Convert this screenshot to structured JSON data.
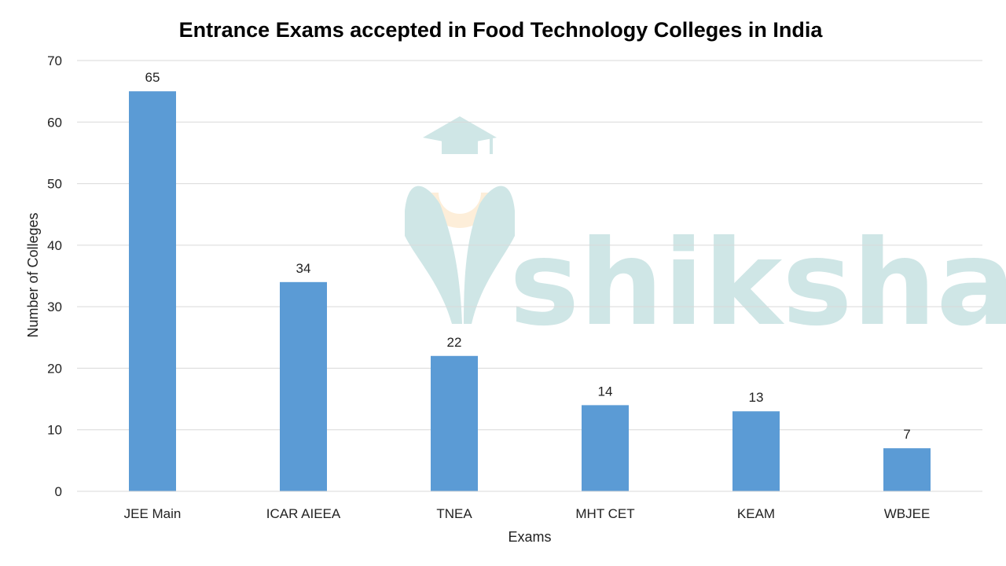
{
  "chart_data": {
    "type": "bar",
    "title": "Entrance Exams accepted in Food Technology Colleges in India",
    "xlabel": "Exams",
    "ylabel": "Number of Colleges",
    "categories": [
      "JEE Main",
      "ICAR AIEEA",
      "TNEA",
      "MHT CET",
      "KEAM",
      "WBJEE"
    ],
    "values": [
      65,
      34,
      22,
      14,
      13,
      7
    ],
    "ylim": [
      0,
      70
    ],
    "yticks": [
      0,
      10,
      20,
      30,
      40,
      50,
      60,
      70
    ],
    "grid": true,
    "data_labels": true,
    "bar_color": "#5b9bd5"
  },
  "watermark": {
    "text": "shiksha",
    "color": "#cfe6e6",
    "accent_color": "#fdeed9",
    "icon": "graduation-cap-icon"
  }
}
